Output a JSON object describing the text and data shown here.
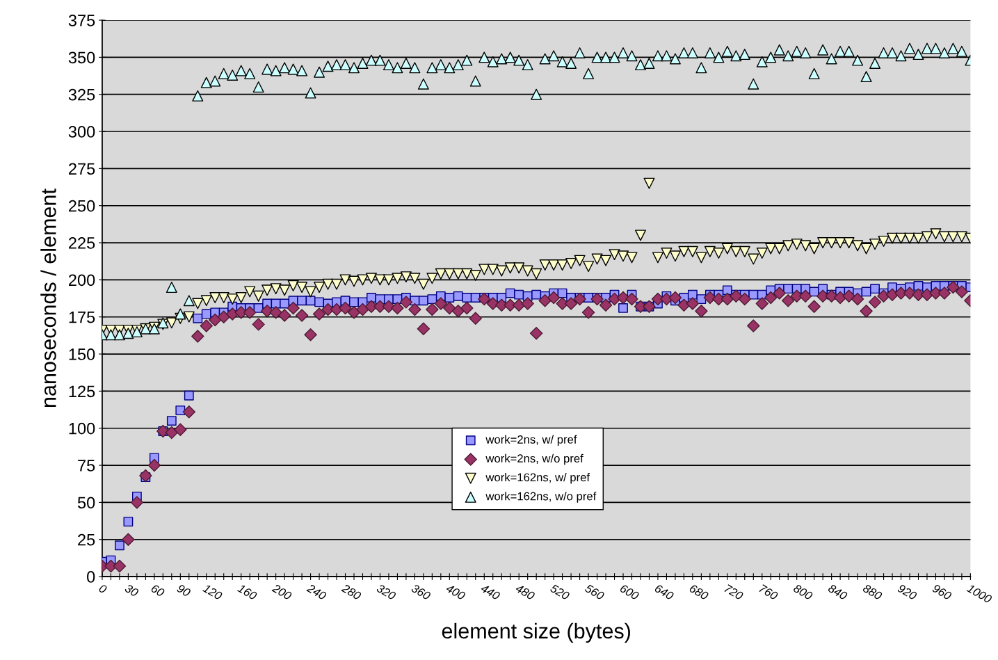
{
  "chart_data": {
    "type": "scatter",
    "xlabel": "element size (bytes)",
    "ylabel": "nanoseconds / element",
    "categories": [
      "0",
      null,
      null,
      "30",
      null,
      null,
      "60",
      null,
      null,
      "90",
      null,
      null,
      "120",
      null,
      null,
      null,
      "160",
      null,
      null,
      null,
      "200",
      null,
      null,
      null,
      "240",
      null,
      null,
      null,
      "280",
      null,
      null,
      null,
      "320",
      null,
      null,
      null,
      "360",
      null,
      null,
      null,
      "400",
      null,
      null,
      null,
      "440",
      null,
      null,
      null,
      "480",
      null,
      null,
      null,
      "520",
      null,
      null,
      null,
      "560",
      null,
      null,
      null,
      "600",
      null,
      null,
      null,
      "640",
      null,
      null,
      null,
      "680",
      null,
      null,
      null,
      "720",
      null,
      null,
      null,
      "760",
      null,
      null,
      null,
      "800",
      null,
      null,
      null,
      "840",
      null,
      null,
      null,
      "880",
      null,
      null,
      null,
      "920",
      null,
      null,
      null,
      "960",
      null,
      null,
      null,
      "1000"
    ],
    "series": [
      {
        "name": "work=2ns, w/ pref",
        "color": "#9999ff",
        "marker": "square",
        "values": [
          10,
          11,
          21,
          37,
          54,
          67,
          80,
          98,
          105,
          112,
          122,
          174,
          177,
          178,
          178,
          182,
          181,
          181,
          181,
          184,
          184,
          184,
          186,
          186,
          186,
          185,
          184,
          185,
          186,
          185,
          185,
          188,
          187,
          187,
          187,
          188,
          186,
          186,
          187,
          189,
          188,
          189,
          188,
          188,
          188,
          188,
          188,
          191,
          190,
          189,
          190,
          189,
          191,
          191,
          188,
          188,
          188,
          188,
          188,
          190,
          181,
          190,
          182,
          182,
          184,
          189,
          186,
          188,
          190,
          187,
          190,
          190,
          193,
          190,
          190,
          190,
          190,
          193,
          194,
          194,
          194,
          194,
          192,
          194,
          190,
          192,
          192,
          191,
          192,
          194,
          191,
          195,
          194,
          195,
          196,
          195,
          196,
          196,
          196,
          196,
          195
        ]
      },
      {
        "name": "work=2ns, w/o pref",
        "color": "#993366",
        "marker": "diamond",
        "values": [
          7,
          7,
          7,
          25,
          50,
          68,
          75,
          98,
          97,
          99,
          111,
          162,
          169,
          173,
          175,
          177,
          178,
          178,
          170,
          179,
          178,
          176,
          181,
          176,
          163,
          177,
          180,
          180,
          181,
          178,
          180,
          182,
          182,
          182,
          181,
          185,
          180,
          167,
          180,
          184,
          181,
          179,
          181,
          174,
          187,
          184,
          183,
          183,
          183,
          184,
          164,
          186,
          188,
          184,
          184,
          187,
          178,
          187,
          183,
          187,
          188,
          187,
          182,
          182,
          187,
          187,
          188,
          183,
          184,
          179,
          188,
          187,
          187,
          189,
          187,
          169,
          184,
          188,
          191,
          186,
          189,
          189,
          182,
          189,
          189,
          188,
          189,
          187,
          179,
          185,
          189,
          190,
          191,
          191,
          190,
          190,
          191,
          191,
          195,
          192,
          186
        ]
      },
      {
        "name": "work=162ns, w/ pref",
        "color": "#ffffcc",
        "marker": "triangle_down",
        "values": [
          166,
          166,
          166,
          166,
          166,
          167,
          168,
          170,
          171,
          174,
          175,
          184,
          186,
          188,
          188,
          187,
          188,
          192,
          189,
          193,
          194,
          193,
          196,
          195,
          192,
          195,
          197,
          197,
          200,
          199,
          200,
          201,
          200,
          200,
          201,
          202,
          201,
          197,
          201,
          204,
          204,
          204,
          204,
          203,
          207,
          207,
          206,
          208,
          208,
          206,
          204,
          210,
          210,
          210,
          211,
          213,
          209,
          214,
          213,
          217,
          216,
          215,
          230,
          265,
          215,
          218,
          216,
          219,
          219,
          215,
          219,
          218,
          221,
          219,
          219,
          214,
          218,
          221,
          221,
          223,
          224,
          223,
          221,
          225,
          225,
          225,
          225,
          223,
          221,
          224,
          226,
          228,
          228,
          228,
          228,
          229,
          231,
          229,
          229,
          229,
          228
        ]
      },
      {
        "name": "work=162ns, w/o pref",
        "color": "#ccffff",
        "marker": "triangle",
        "values": [
          163,
          163,
          163,
          164,
          165,
          167,
          167,
          171,
          195,
          177,
          186,
          324,
          333,
          334,
          339,
          338,
          341,
          339,
          330,
          342,
          341,
          343,
          342,
          341,
          326,
          340,
          344,
          345,
          345,
          343,
          346,
          348,
          348,
          345,
          343,
          346,
          343,
          332,
          343,
          345,
          343,
          345,
          348,
          334,
          350,
          347,
          349,
          350,
          348,
          345,
          325,
          349,
          351,
          347,
          346,
          353,
          339,
          350,
          350,
          350,
          353,
          351,
          345,
          346,
          351,
          351,
          349,
          353,
          353,
          343,
          353,
          350,
          354,
          351,
          352,
          332,
          347,
          350,
          355,
          351,
          354,
          353,
          339,
          355,
          349,
          354,
          354,
          348,
          337,
          346,
          353,
          353,
          351,
          356,
          352,
          356,
          356,
          353,
          356,
          354,
          348
        ]
      }
    ],
    "ylim": [
      0,
      375
    ],
    "yticks": [
      0,
      25,
      50,
      75,
      100,
      125,
      150,
      175,
      200,
      225,
      250,
      275,
      300,
      325,
      350,
      375
    ],
    "grid": "y",
    "legend": "bottom"
  }
}
